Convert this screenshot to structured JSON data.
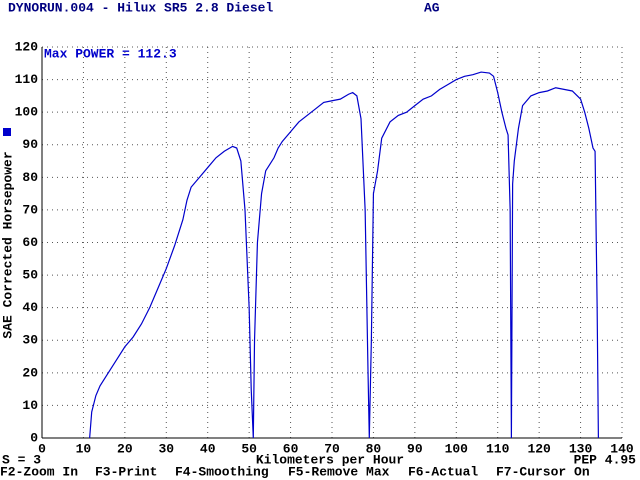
{
  "chart_data": {
    "type": "line",
    "title": "DYNORUN.004 - Hilux SR5 2.8 Diesel",
    "tag": "AG",
    "annotation": "Max POWER = 112.3",
    "xlabel": "Kilometers per Hour",
    "ylabel": "SAE Corrected Horsepower",
    "smoothing": "S = 3",
    "version": "PEP 4.95",
    "color": "#0000cc",
    "xlim": [
      0,
      140
    ],
    "ylim": [
      0,
      120
    ],
    "xticks": [
      0,
      10,
      20,
      30,
      40,
      50,
      60,
      70,
      80,
      90,
      100,
      110,
      120,
      130,
      140
    ],
    "yticks": [
      0,
      10,
      20,
      30,
      40,
      50,
      60,
      70,
      80,
      90,
      100,
      110,
      120
    ],
    "grid": true,
    "x": [
      11.5,
      12,
      13,
      14,
      16,
      18,
      20,
      22,
      24,
      26,
      28,
      30,
      32,
      34,
      35,
      36,
      38,
      40,
      42,
      44,
      46,
      47,
      48,
      49,
      50,
      50.5,
      51,
      51.3,
      52,
      53,
      54,
      55,
      56,
      57,
      58,
      60,
      62,
      64,
      66,
      68,
      70,
      72,
      74,
      75,
      76,
      77,
      78,
      78.7,
      79,
      79.5,
      80,
      81,
      82,
      84,
      86,
      88,
      90,
      92,
      94,
      96,
      98,
      100,
      102,
      104,
      106,
      108,
      109,
      110,
      111,
      112,
      112.5,
      113,
      113.3,
      113.6,
      114,
      115,
      116,
      118,
      120,
      122,
      124,
      126,
      128,
      130,
      131,
      132,
      133,
      133.5,
      134,
      134.3
    ],
    "values": [
      0,
      8,
      13,
      16,
      20,
      24,
      28,
      31,
      35,
      40,
      46,
      52,
      59,
      67,
      73,
      77,
      80,
      83,
      86,
      88,
      89.5,
      89,
      85,
      70,
      40,
      15,
      0,
      30,
      60,
      75,
      82,
      84,
      86,
      89,
      91,
      94,
      97,
      99,
      101,
      103,
      103.5,
      104,
      105.5,
      106,
      105,
      98,
      70,
      20,
      0,
      30,
      75,
      82,
      92,
      97,
      99,
      100,
      102,
      104,
      105,
      107,
      108.5,
      110,
      111,
      111.5,
      112.3,
      112,
      111,
      106,
      100,
      95,
      93,
      70,
      0,
      78,
      85,
      95,
      102,
      105,
      106,
      106.5,
      107.5,
      107,
      106.5,
      104,
      100,
      95,
      89,
      88,
      40,
      0
    ]
  },
  "function_keys": [
    "F2-Zoom In",
    "F3-Print",
    "F4-Smoothing",
    "F5-Remove Max",
    "F6-Actual",
    "F7-Cursor On"
  ]
}
